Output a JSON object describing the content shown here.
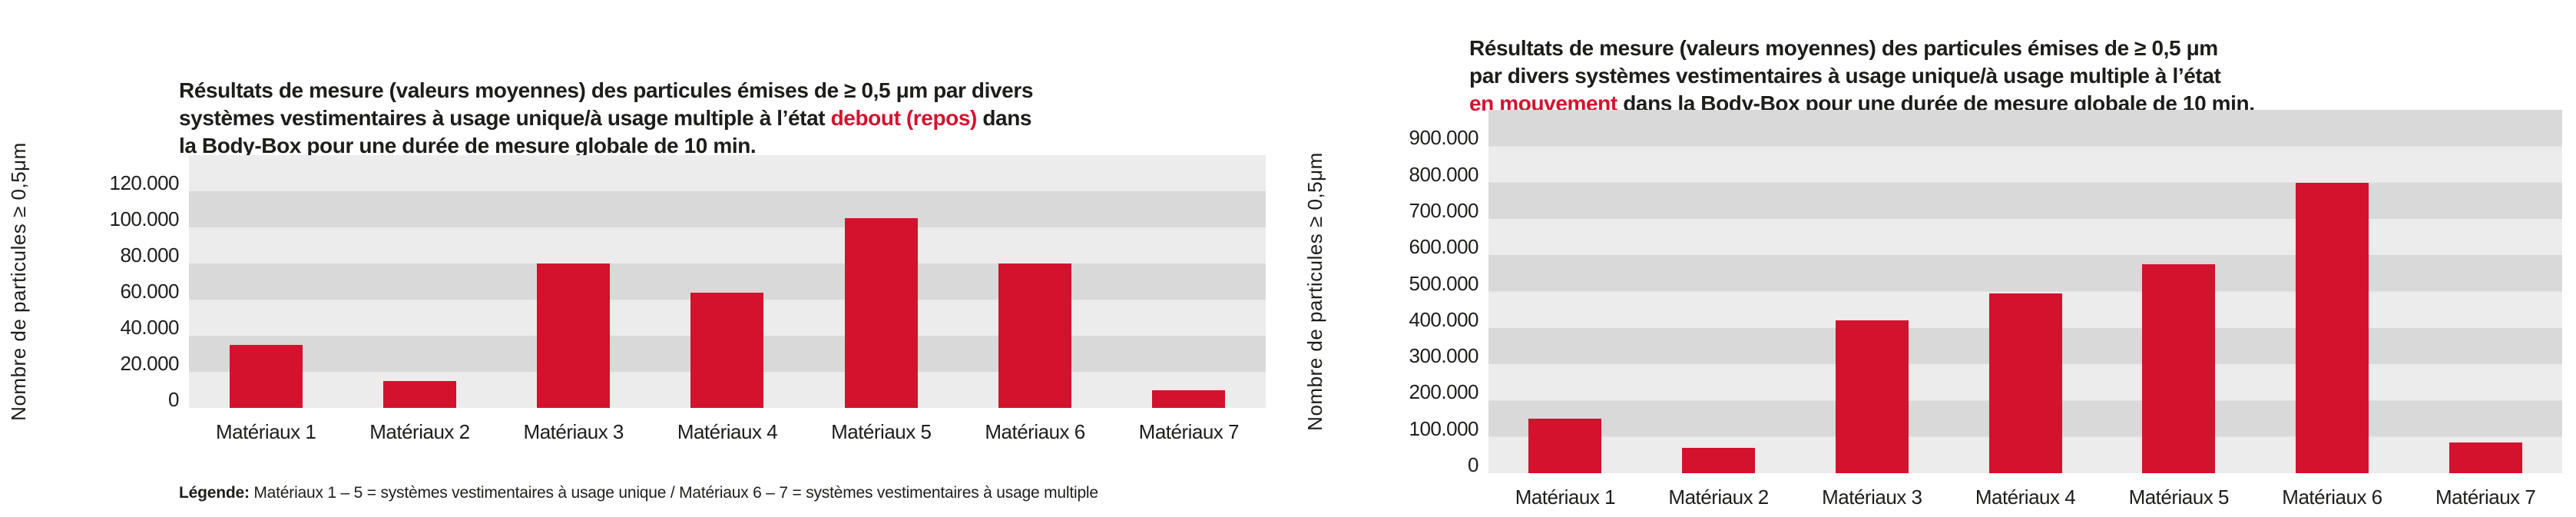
{
  "colors": {
    "bar_red": "#d3122e",
    "title_highlight_red": "#d3122e",
    "band_light": "#ececec",
    "band_dark": "#d9d9d9",
    "text": "#1d1d1b",
    "background": "#ffffff"
  },
  "chart_data": [
    {
      "type": "bar",
      "state": "debout (repos)",
      "title_pre": "Résultats de mesure (valeurs moyennes) des particules émises de ≥ 0,5 μm par divers\nsystèmes vestimentaires à usage unique/à usage multiple à l’état ",
      "title_highlight": "debout (repos)",
      "title_post": " dans\nla Body-Box pour une durée de mesure globale de 10 min.",
      "ylabel": "Nombre de particules ≥ 0,5μm",
      "categories": [
        "Matériaux 1",
        "Matériaux 2",
        "Matériaux 3",
        "Matériaux 4",
        "Matériaux 5",
        "Matériaux 6",
        "Matériaux 7"
      ],
      "values": [
        35000,
        15000,
        80000,
        64000,
        105000,
        80000,
        10000
      ],
      "ylim": [
        0,
        140000
      ],
      "ytick_interval": 20000,
      "yticks": [
        {
          "value": 0,
          "label": "0"
        },
        {
          "value": 20000,
          "label": "20.000"
        },
        {
          "value": 40000,
          "label": "40.000"
        },
        {
          "value": 60000,
          "label": "60.000"
        },
        {
          "value": 80000,
          "label": "80.000"
        },
        {
          "value": 100000,
          "label": "100.000"
        },
        {
          "value": 120000,
          "label": "120.000"
        }
      ],
      "grid_bands": "alternating horizontal stripes, light/dark, one tick interval tall",
      "legend_label": "Légende:",
      "legend_text": " Matériaux 1 – 5 = systèmes vestimentaires à usage unique / Matériaux 6 – 7 = systèmes vestimentaires à usage multiple"
    },
    {
      "type": "bar",
      "state": "en mouvement",
      "title_pre": "Résultats de mesure (valeurs moyennes) des particules émises de ≥ 0,5 μm\npar divers systèmes vestimentaires à usage unique/à usage multiple à l’état\n",
      "title_highlight": "en mouvement",
      "title_post": " dans la Body-Box pour une durée de mesure globale de 10 min.",
      "ylabel": "Nombre de particules ≥ 0,5μm",
      "categories": [
        "Matériaux 1",
        "Matériaux 2",
        "Matériaux 3",
        "Matériaux 4",
        "Matériaux 5",
        "Matériaux 6",
        "Matériaux 7"
      ],
      "values": [
        150000,
        70000,
        420000,
        495000,
        575000,
        800000,
        85000
      ],
      "ylim": [
        0,
        1000000
      ],
      "ytick_interval": 100000,
      "yticks": [
        {
          "value": 0,
          "label": "0"
        },
        {
          "value": 100000,
          "label": "100.000"
        },
        {
          "value": 200000,
          "label": "200.000"
        },
        {
          "value": 300000,
          "label": "300.000"
        },
        {
          "value": 400000,
          "label": "400.000"
        },
        {
          "value": 500000,
          "label": "500.000"
        },
        {
          "value": 600000,
          "label": "600.000"
        },
        {
          "value": 700000,
          "label": "700.000"
        },
        {
          "value": 800000,
          "label": "800.000"
        },
        {
          "value": 900000,
          "label": "900.000"
        }
      ],
      "grid_bands": "alternating horizontal stripes, light/dark, one tick interval tall"
    }
  ]
}
